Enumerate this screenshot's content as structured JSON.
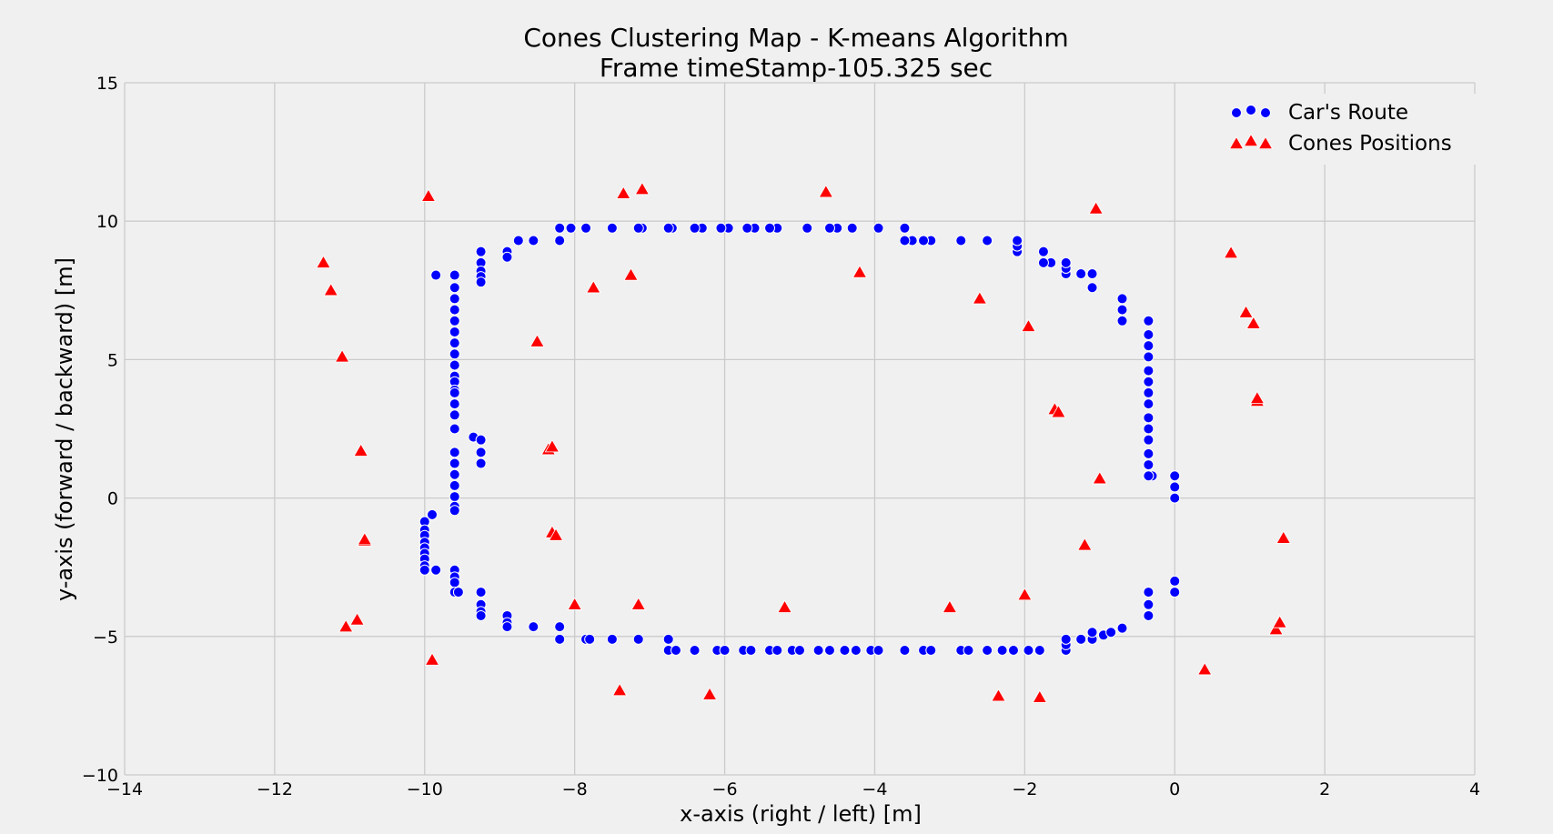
{
  "chart_data": {
    "type": "scatter",
    "title": "Cones Clustering Map - K-means Algorithm",
    "subtitle": "Frame timeStamp-105.325 sec",
    "xlabel": "x-axis (right / left) [m]",
    "ylabel": "y-axis (forward / backward) [m]",
    "xlim": [
      -14,
      4
    ],
    "ylim": [
      -10,
      15
    ],
    "xticks": [
      -14,
      -12,
      -10,
      -8,
      -6,
      -4,
      -2,
      0,
      2,
      4
    ],
    "yticks": [
      -10,
      -5,
      0,
      5,
      10,
      15
    ],
    "grid": true,
    "legend_position": "top-right",
    "series": [
      {
        "name": "Car's Route",
        "marker": "circle",
        "color": "#0000ff",
        "points": [
          [
            0,
            0
          ],
          [
            0,
            0.4
          ],
          [
            0,
            0.8
          ],
          [
            -0.3,
            0.8
          ],
          [
            -0.35,
            0.8
          ],
          [
            -0.35,
            1.2
          ],
          [
            -0.35,
            1.6
          ],
          [
            -0.35,
            2.1
          ],
          [
            -0.35,
            2.5
          ],
          [
            -0.35,
            2.9
          ],
          [
            -0.35,
            3.4
          ],
          [
            -0.35,
            3.8
          ],
          [
            -0.35,
            4.2
          ],
          [
            -0.35,
            4.6
          ],
          [
            -0.35,
            5.1
          ],
          [
            -0.35,
            5.5
          ],
          [
            -0.35,
            5.9
          ],
          [
            -0.35,
            6.4
          ],
          [
            -0.7,
            6.4
          ],
          [
            -0.7,
            6.8
          ],
          [
            -0.7,
            7.2
          ],
          [
            -1.1,
            7.6
          ],
          [
            -1.1,
            8.1
          ],
          [
            -1.25,
            8.1
          ],
          [
            -1.45,
            8.1
          ],
          [
            -1.45,
            8.3
          ],
          [
            -1.45,
            8.5
          ],
          [
            -1.65,
            8.5
          ],
          [
            -1.75,
            8.5
          ],
          [
            -1.75,
            8.9
          ],
          [
            -2.1,
            8.9
          ],
          [
            -2.1,
            9.1
          ],
          [
            -2.1,
            9.3
          ],
          [
            -2.5,
            9.3
          ],
          [
            -2.85,
            9.3
          ],
          [
            -3.25,
            9.3
          ],
          [
            -3.35,
            9.3
          ],
          [
            -3.5,
            9.3
          ],
          [
            -3.6,
            9.3
          ],
          [
            -3.6,
            9.75
          ],
          [
            -3.95,
            9.75
          ],
          [
            -4.3,
            9.75
          ],
          [
            -4.5,
            9.75
          ],
          [
            -4.6,
            9.75
          ],
          [
            -4.9,
            9.75
          ],
          [
            -5.3,
            9.75
          ],
          [
            -5.4,
            9.75
          ],
          [
            -5.6,
            9.75
          ],
          [
            -5.7,
            9.75
          ],
          [
            -5.95,
            9.75
          ],
          [
            -6.05,
            9.75
          ],
          [
            -6.3,
            9.75
          ],
          [
            -6.4,
            9.75
          ],
          [
            -6.7,
            9.75
          ],
          [
            -6.75,
            9.75
          ],
          [
            -7.1,
            9.75
          ],
          [
            -7.15,
            9.75
          ],
          [
            -7.5,
            9.75
          ],
          [
            -7.85,
            9.75
          ],
          [
            -8.05,
            9.75
          ],
          [
            -8.2,
            9.75
          ],
          [
            -8.2,
            9.3
          ],
          [
            -8.55,
            9.3
          ],
          [
            -8.75,
            9.3
          ],
          [
            -8.9,
            8.9
          ],
          [
            -8.9,
            8.7
          ],
          [
            -9.25,
            8.9
          ],
          [
            -9.25,
            8.5
          ],
          [
            -9.25,
            8.2
          ],
          [
            -9.25,
            8.0
          ],
          [
            -9.25,
            7.8
          ],
          [
            -9.6,
            8.05
          ],
          [
            -9.85,
            8.05
          ],
          [
            -9.6,
            7.6
          ],
          [
            -9.6,
            7.2
          ],
          [
            -9.6,
            6.8
          ],
          [
            -9.6,
            6.4
          ],
          [
            -9.6,
            6.0
          ],
          [
            -9.6,
            5.6
          ],
          [
            -9.6,
            5.2
          ],
          [
            -9.6,
            4.8
          ],
          [
            -9.6,
            4.4
          ],
          [
            -9.6,
            4.2
          ],
          [
            -9.6,
            3.9
          ],
          [
            -9.6,
            3.8
          ],
          [
            -9.6,
            3.4
          ],
          [
            -9.6,
            3.0
          ],
          [
            -9.6,
            2.5
          ],
          [
            -9.35,
            2.2
          ],
          [
            -9.25,
            2.1
          ],
          [
            -9.25,
            1.65
          ],
          [
            -9.25,
            1.25
          ],
          [
            -9.6,
            1.65
          ],
          [
            -9.6,
            1.25
          ],
          [
            -9.6,
            0.85
          ],
          [
            -9.6,
            0.45
          ],
          [
            -9.6,
            0.05
          ],
          [
            -9.6,
            -0.3
          ],
          [
            -9.6,
            -0.45
          ],
          [
            -9.9,
            -0.6
          ],
          [
            -10,
            -0.85
          ],
          [
            -10,
            -1.15
          ],
          [
            -10,
            -1.35
          ],
          [
            -10,
            -1.6
          ],
          [
            -10,
            -1.8
          ],
          [
            -10,
            -2.0
          ],
          [
            -10,
            -2.2
          ],
          [
            -10,
            -2.45
          ],
          [
            -10,
            -2.6
          ],
          [
            -9.85,
            -2.6
          ],
          [
            -9.6,
            -2.6
          ],
          [
            -9.6,
            -2.85
          ],
          [
            -9.6,
            -3.05
          ],
          [
            -9.6,
            -3.4
          ],
          [
            -9.55,
            -3.4
          ],
          [
            -9.25,
            -3.4
          ],
          [
            -9.25,
            -3.85
          ],
          [
            -9.25,
            -4.1
          ],
          [
            -9.25,
            -4.25
          ],
          [
            -8.9,
            -4.25
          ],
          [
            -8.9,
            -4.5
          ],
          [
            -8.9,
            -4.65
          ],
          [
            -8.55,
            -4.65
          ],
          [
            -8.2,
            -4.65
          ],
          [
            -8.2,
            -5.1
          ],
          [
            -7.85,
            -5.1
          ],
          [
            -7.8,
            -5.1
          ],
          [
            -7.5,
            -5.1
          ],
          [
            -7.15,
            -5.1
          ],
          [
            -6.75,
            -5.1
          ],
          [
            -6.75,
            -5.5
          ],
          [
            -6.65,
            -5.5
          ],
          [
            -6.4,
            -5.5
          ],
          [
            -6.1,
            -5.5
          ],
          [
            -6.0,
            -5.5
          ],
          [
            -5.75,
            -5.5
          ],
          [
            -5.65,
            -5.5
          ],
          [
            -5.4,
            -5.5
          ],
          [
            -5.3,
            -5.5
          ],
          [
            -5.1,
            -5.5
          ],
          [
            -5.0,
            -5.5
          ],
          [
            -4.75,
            -5.5
          ],
          [
            -4.6,
            -5.5
          ],
          [
            -4.4,
            -5.5
          ],
          [
            -4.25,
            -5.5
          ],
          [
            -4.05,
            -5.5
          ],
          [
            -3.95,
            -5.5
          ],
          [
            -3.6,
            -5.5
          ],
          [
            -3.35,
            -5.5
          ],
          [
            -3.25,
            -5.5
          ],
          [
            -2.85,
            -5.5
          ],
          [
            -2.75,
            -5.5
          ],
          [
            -2.5,
            -5.5
          ],
          [
            -2.3,
            -5.5
          ],
          [
            -2.15,
            -5.5
          ],
          [
            -1.95,
            -5.5
          ],
          [
            -1.8,
            -5.5
          ],
          [
            -1.45,
            -5.5
          ],
          [
            -1.45,
            -5.3
          ],
          [
            -1.45,
            -5.1
          ],
          [
            -1.25,
            -5.1
          ],
          [
            -1.1,
            -5.1
          ],
          [
            -1.1,
            -4.85
          ],
          [
            -0.95,
            -4.95
          ],
          [
            -0.85,
            -4.85
          ],
          [
            -0.7,
            -4.7
          ],
          [
            -0.35,
            -4.25
          ],
          [
            -0.35,
            -3.85
          ],
          [
            -0.35,
            -3.4
          ],
          [
            0,
            -3.4
          ],
          [
            0,
            -3.0
          ]
        ]
      },
      {
        "name": "Cones Positions",
        "marker": "triangle",
        "color": "#ff0000",
        "points": [
          [
            -9.95,
            10.9
          ],
          [
            -7.35,
            11.0
          ],
          [
            -7.1,
            11.15
          ],
          [
            -4.65,
            11.05
          ],
          [
            -1.05,
            10.45
          ],
          [
            -11.35,
            8.5
          ],
          [
            -11.25,
            7.5
          ],
          [
            -7.75,
            7.6
          ],
          [
            -7.25,
            8.05
          ],
          [
            -4.2,
            8.15
          ],
          [
            -2.6,
            7.2
          ],
          [
            -1.95,
            6.2
          ],
          [
            0.75,
            8.85
          ],
          [
            0.95,
            6.7
          ],
          [
            1.05,
            6.3
          ],
          [
            -11.1,
            5.1
          ],
          [
            -8.5,
            5.65
          ],
          [
            -1.6,
            3.2
          ],
          [
            -1.55,
            3.1
          ],
          [
            1.1,
            3.5
          ],
          [
            1.1,
            3.6
          ],
          [
            -10.85,
            1.7
          ],
          [
            -8.35,
            1.75
          ],
          [
            -8.3,
            1.85
          ],
          [
            -1.0,
            0.7
          ],
          [
            -10.8,
            -1.55
          ],
          [
            -10.8,
            -1.5
          ],
          [
            -8.3,
            -1.25
          ],
          [
            -8.25,
            -1.35
          ],
          [
            -1.2,
            -1.7
          ],
          [
            1.45,
            -1.45
          ],
          [
            -8.0,
            -3.85
          ],
          [
            -7.15,
            -3.85
          ],
          [
            -5.2,
            -3.95
          ],
          [
            -3.0,
            -3.95
          ],
          [
            -2.0,
            -3.5
          ],
          [
            -10.9,
            -4.4
          ],
          [
            -11.05,
            -4.65
          ],
          [
            1.35,
            -4.75
          ],
          [
            1.4,
            -4.5
          ],
          [
            -9.9,
            -5.85
          ],
          [
            -7.4,
            -6.95
          ],
          [
            -6.2,
            -7.1
          ],
          [
            -2.35,
            -7.15
          ],
          [
            -1.8,
            -7.2
          ],
          [
            0.4,
            -6.2
          ]
        ]
      }
    ]
  }
}
